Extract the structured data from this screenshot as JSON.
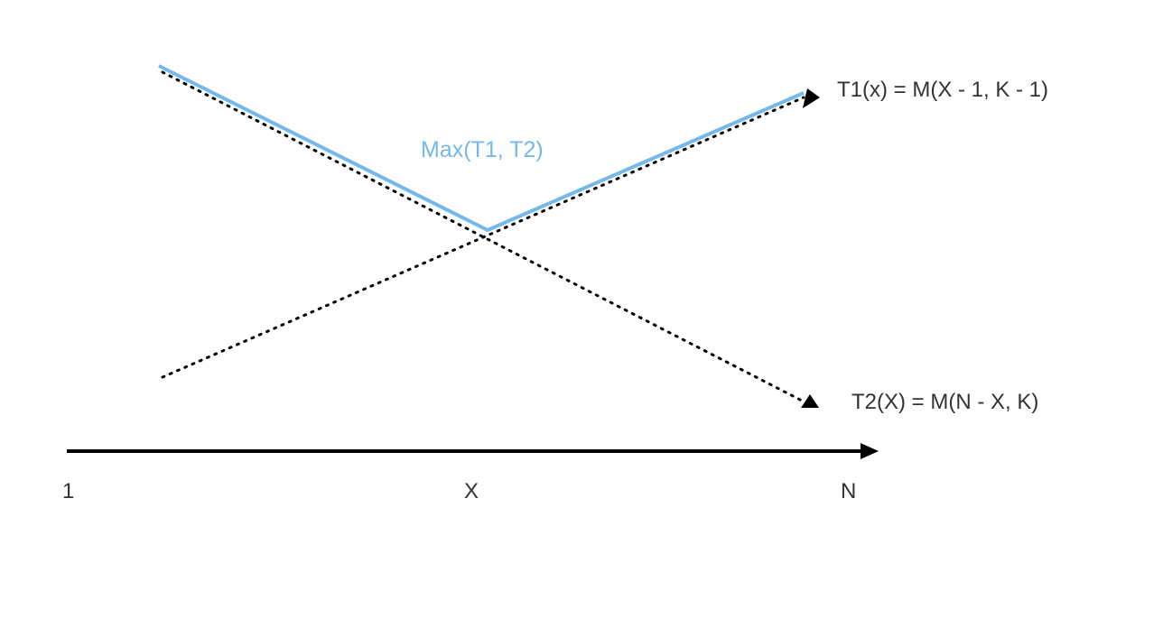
{
  "diagram": {
    "max_label": "Max(T1, T2)",
    "t1_label": "T1(x) = M(X - 1, K - 1)",
    "t2_label": "T2(X) = M(N - X, K)",
    "axis": {
      "start_label": "1",
      "mid_label": "X",
      "end_label": "N"
    }
  },
  "colors": {
    "max_line": "#74b9ea",
    "dotted": "#000000",
    "axis": "#000000",
    "text": "#333333"
  }
}
